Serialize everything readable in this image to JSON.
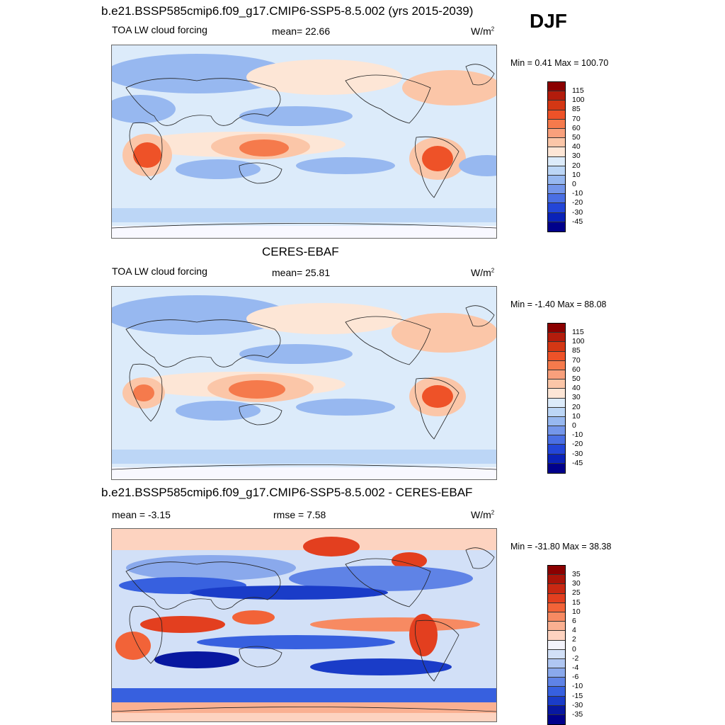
{
  "season": "DJF",
  "units": "W/m",
  "units_sup": "2",
  "panels": [
    {
      "title": "b.e21.BSSP585cmip6.f09_g17.CMIP6-SSP5-8.5.002 (yrs 2015-2039)",
      "variable": "TOA LW cloud forcing",
      "stat_text": "mean=  22.66",
      "minmax": "Min =   0.41 Max = 100.70",
      "colorbar_labels": [
        "115",
        "100",
        "85",
        "70",
        "60",
        "50",
        "40",
        "30",
        "20",
        "10",
        "0",
        "-10",
        "-20",
        "-30",
        "-45"
      ]
    },
    {
      "title": "CERES-EBAF",
      "variable": "TOA LW cloud forcing",
      "stat_text": "mean=  25.81",
      "minmax": "Min =  -1.40 Max =  88.08",
      "colorbar_labels": [
        "115",
        "100",
        "85",
        "70",
        "60",
        "50",
        "40",
        "30",
        "20",
        "10",
        "0",
        "-10",
        "-20",
        "-30",
        "-45"
      ]
    },
    {
      "title": "b.e21.BSSP585cmip6.f09_g17.CMIP6-SSP5-8.5.002 - CERES-EBAF",
      "stat_left": "mean =  -3.15",
      "stat_text": "rmse =   7.58",
      "minmax": "Min = -31.80 Max =  38.38",
      "colorbar_labels": [
        "35",
        "30",
        "25",
        "15",
        "10",
        "6",
        "4",
        "2",
        "0",
        "-2",
        "-4",
        "-6",
        "-10",
        "-15",
        "-30",
        "-35"
      ]
    }
  ],
  "colors": {
    "abs_scale": [
      "#8b0000",
      "#b31c0c",
      "#d43714",
      "#ee5228",
      "#f57a4c",
      "#f8a07c",
      "#fbc6a8",
      "#fde6d6",
      "#dcebfa",
      "#bcd6f6",
      "#97b8f0",
      "#7496ea",
      "#4a6fe4",
      "#2346d8",
      "#0a22b8",
      "#00008b"
    ],
    "diff_scale": [
      "#8b0000",
      "#aa1408",
      "#c92812",
      "#e33f1f",
      "#f26338",
      "#f78a62",
      "#fab091",
      "#fdd3c0",
      "#f3f3fb",
      "#d2e0f7",
      "#b0c7f2",
      "#8aa9ec",
      "#5f83e6",
      "#3760df",
      "#1a3cc8",
      "#0818a0",
      "#00008b"
    ],
    "map_background": "#dcebfa"
  }
}
